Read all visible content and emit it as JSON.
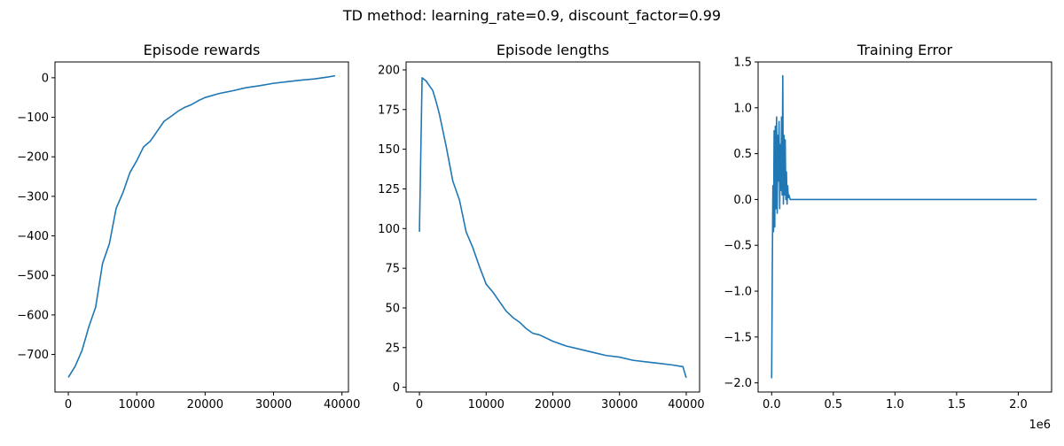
{
  "figure": {
    "suptitle": "TD method: learning_rate=0.9, discount_factor=0.99",
    "line_color": "#1f77b4"
  },
  "chart_data": [
    {
      "type": "line",
      "title": "Episode rewards",
      "xlabel": "",
      "ylabel": "",
      "xlim": [
        -1950,
        40950
      ],
      "ylim": [
        -795,
        40
      ],
      "xticks": [
        0,
        10000,
        20000,
        30000,
        40000
      ],
      "xtick_labels": [
        "0",
        "10000",
        "20000",
        "30000",
        "40000"
      ],
      "yticks": [
        0,
        -100,
        -200,
        -300,
        -400,
        -500,
        -600,
        -700
      ],
      "ytick_labels": [
        "0",
        "−100",
        "−200",
        "−300",
        "−400",
        "−500",
        "−600",
        "−700"
      ],
      "x_offset_label": "",
      "grid": false,
      "series": [
        {
          "x": [
            0,
            1000,
            2000,
            3000,
            4000,
            5000,
            6000,
            7000,
            8000,
            9000,
            10000,
            11000,
            12000,
            13000,
            14000,
            15000,
            16000,
            17000,
            18000,
            19000,
            20000,
            22000,
            24000,
            26000,
            28000,
            30000,
            32000,
            34000,
            36000,
            38000,
            39000
          ],
          "y": [
            -758,
            -730,
            -690,
            -630,
            -580,
            -470,
            -420,
            -330,
            -290,
            -240,
            -210,
            -175,
            -160,
            -135,
            -110,
            -98,
            -85,
            -75,
            -68,
            -58,
            -50,
            -40,
            -33,
            -25,
            -20,
            -14,
            -10,
            -6,
            -3,
            2,
            5
          ]
        }
      ]
    },
    {
      "type": "line",
      "title": "Episode lengths",
      "xlabel": "",
      "ylabel": "",
      "xlim": [
        -2000,
        42000
      ],
      "ylim": [
        -3,
        205
      ],
      "xticks": [
        0,
        10000,
        20000,
        30000,
        40000
      ],
      "xtick_labels": [
        "0",
        "10000",
        "20000",
        "30000",
        "40000"
      ],
      "yticks": [
        0,
        25,
        50,
        75,
        100,
        125,
        150,
        175,
        200
      ],
      "ytick_labels": [
        "0",
        "25",
        "50",
        "75",
        "100",
        "125",
        "150",
        "175",
        "200"
      ],
      "x_offset_label": "",
      "grid": false,
      "series": [
        {
          "x": [
            0,
            400,
            1000,
            1500,
            2000,
            2500,
            3000,
            3500,
            4000,
            5000,
            6000,
            7000,
            8000,
            9000,
            10000,
            11000,
            12000,
            13000,
            14000,
            15000,
            16000,
            17000,
            18000,
            19000,
            20000,
            22000,
            24000,
            26000,
            28000,
            30000,
            32000,
            34000,
            36000,
            38000,
            39500,
            40000
          ],
          "y": [
            98,
            195,
            193,
            190,
            187,
            180,
            172,
            162,
            152,
            130,
            118,
            98,
            88,
            76,
            65,
            60,
            54,
            48,
            44,
            41,
            37,
            34,
            33,
            31,
            29,
            26,
            24,
            22,
            20,
            19,
            17,
            16,
            15,
            14,
            13,
            6
          ]
        }
      ]
    },
    {
      "type": "line",
      "title": "Training Error",
      "xlabel": "",
      "ylabel": "",
      "xlim": [
        -110000,
        2270000
      ],
      "ylim": [
        -2.1,
        1.5
      ],
      "xticks": [
        0,
        500000,
        1000000,
        1500000,
        2000000
      ],
      "xtick_labels": [
        "0.0",
        "0.5",
        "1.0",
        "1.5",
        "2.0"
      ],
      "yticks": [
        1.5,
        1.0,
        0.5,
        0.0,
        -0.5,
        -1.0,
        -1.5,
        -2.0
      ],
      "ytick_labels": [
        "1.5",
        "1.0",
        "0.5",
        "0.0",
        "−0.5",
        "−1.0",
        "−1.5",
        "−2.0"
      ],
      "x_offset_label": "1e6",
      "grid": false,
      "series": [
        {
          "x": [
            0,
            5000,
            10000,
            15000,
            20000,
            25000,
            30000,
            35000,
            40000,
            45000,
            50000,
            55000,
            60000,
            65000,
            70000,
            75000,
            80000,
            85000,
            90000,
            95000,
            100000,
            105000,
            110000,
            115000,
            120000,
            125000,
            130000,
            135000,
            140000,
            150000,
            170000,
            200000,
            400000,
            800000,
            1200000,
            1600000,
            2000000,
            2150000
          ],
          "y": [
            -1.95,
            -0.8,
            0.15,
            -0.35,
            0.75,
            -0.3,
            0.8,
            -0.1,
            0.9,
            -0.15,
            0.7,
            0.2,
            0.85,
            -0.1,
            0.6,
            0.1,
            0.9,
            0.05,
            1.35,
            -0.05,
            0.7,
            0.05,
            0.65,
            0.0,
            0.3,
            -0.05,
            0.15,
            0.02,
            0.05,
            0.0,
            0.0,
            0.0,
            0.0,
            0.0,
            0.0,
            0.0,
            0.0,
            0.0
          ]
        }
      ]
    }
  ]
}
